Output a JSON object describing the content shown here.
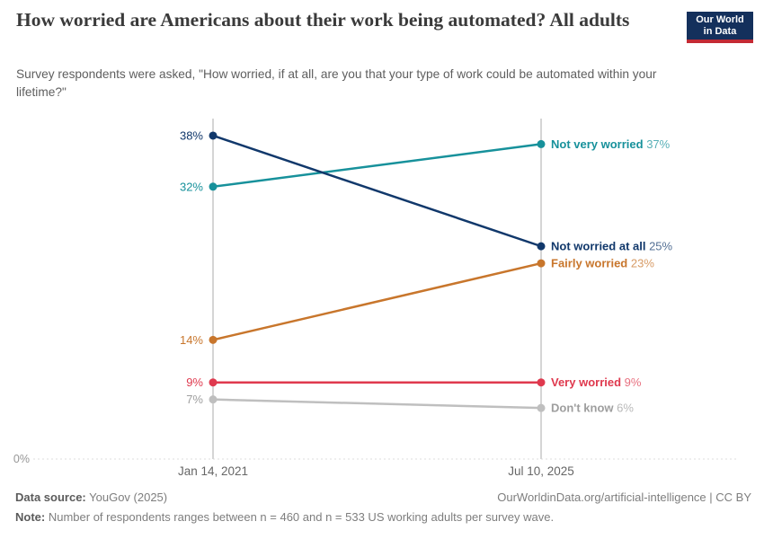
{
  "header": {
    "title": "How worried are Americans about their work being automated? All adults",
    "subtitle": "Survey respondents were asked, \"How worried, if at all, are you that your type of work could be automated within your lifetime?\""
  },
  "logo": {
    "line1": "Our World",
    "line2": "in Data",
    "bg_color": "#14305C",
    "accent_color": "#C42A34"
  },
  "chart_data": {
    "type": "slope",
    "x": [
      "Jan 14, 2021",
      "Jul 10, 2025"
    ],
    "unit": "%",
    "ylim": [
      0,
      40
    ],
    "zero_label": "0%",
    "grid": "zero-line-only",
    "legend_position": "right-inline",
    "series": [
      {
        "name": "Not very worried",
        "color": "#17919B",
        "values": [
          32,
          37
        ]
      },
      {
        "name": "Not worried at all",
        "color": "#11386B",
        "values": [
          38,
          25
        ]
      },
      {
        "name": "Fairly worried",
        "color": "#C8762C",
        "values": [
          14,
          23
        ]
      },
      {
        "name": "Very worried",
        "color": "#DF394E",
        "values": [
          9,
          9
        ]
      },
      {
        "name": "Don't know",
        "color": "#9E9E9E",
        "line_color": "#BFBFBF",
        "values": [
          7,
          6
        ]
      }
    ]
  },
  "footer": {
    "source_label": "Data source:",
    "source_value": "YouGov (2025)",
    "attribution": "OurWorldinData.org/artificial-intelligence | CC BY",
    "note_label": "Note:",
    "note_text": "Number of respondents ranges between n = 460 and n = 533 US working adults per survey wave."
  }
}
